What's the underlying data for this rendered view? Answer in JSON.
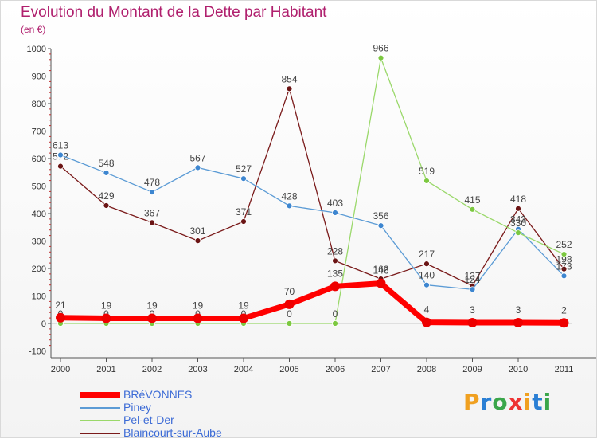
{
  "title": "Evolution du Montant de la Dette par Habitant",
  "subtitle": "(en €)",
  "brand": {
    "text": "Proxiti",
    "colors": [
      "#f0a020",
      "#2a7fd4",
      "#3aa64a",
      "#e33",
      "#f0a020",
      "#2a7fd4",
      "#3aa64a"
    ]
  },
  "chart_data": {
    "type": "line",
    "x": [
      "2000",
      "2001",
      "2002",
      "2003",
      "2004",
      "2005",
      "2006",
      "2007",
      "2008",
      "2009",
      "2010",
      "2011"
    ],
    "ylim": [
      -100,
      1000
    ],
    "yticks": [
      -100,
      0,
      100,
      200,
      300,
      400,
      500,
      600,
      700,
      800,
      900,
      1000
    ],
    "grid": false,
    "legend_position": "bottom-left",
    "series": [
      {
        "name": "Blaincourt-sur-Aube",
        "color": "#7a1a1a",
        "point_color": "#6b1414",
        "line_width": 1.3,
        "values": [
          572,
          429,
          367,
          301,
          371,
          854,
          228,
          162,
          217,
          137,
          418,
          198
        ],
        "labels": [
          "572",
          "429",
          "367",
          "301",
          "371",
          "854",
          "228",
          "162",
          "217",
          "137",
          "418",
          "198"
        ]
      },
      {
        "name": "Piney",
        "color": "#5b9bd5",
        "point_color": "#3d86d0",
        "line_width": 1.3,
        "values": [
          613,
          548,
          478,
          567,
          527,
          428,
          403,
          356,
          140,
          124,
          343,
          173
        ],
        "labels": [
          "613",
          "548",
          "478",
          "567",
          "527",
          "428",
          "403",
          "356",
          "140",
          "124",
          "343",
          "173"
        ]
      },
      {
        "name": "Pel-et-Der",
        "color": "#9ad86a",
        "point_color": "#7cc840",
        "line_width": 1.3,
        "values": [
          0,
          0,
          0,
          0,
          0,
          0,
          0,
          966,
          519,
          415,
          330,
          252
        ],
        "labels": [
          "0",
          "0",
          "0",
          "0",
          "0",
          "0",
          "0",
          "966",
          "519",
          "415",
          "330",
          "252"
        ]
      },
      {
        "name": "BRéVONNES",
        "color": "#ff0000",
        "point_color": "#ee0000",
        "line_width": 7,
        "values": [
          21,
          19,
          19,
          19,
          19,
          70,
          135,
          146,
          4,
          3,
          3,
          2
        ],
        "labels": [
          "21",
          "19",
          "19",
          "19",
          "19",
          "70",
          "135",
          "146",
          "4",
          "3",
          "3",
          "2"
        ]
      }
    ],
    "legend_order": [
      "BRéVONNES",
      "Piney",
      "Pel-et-Der",
      "Blaincourt-sur-Aube"
    ]
  }
}
